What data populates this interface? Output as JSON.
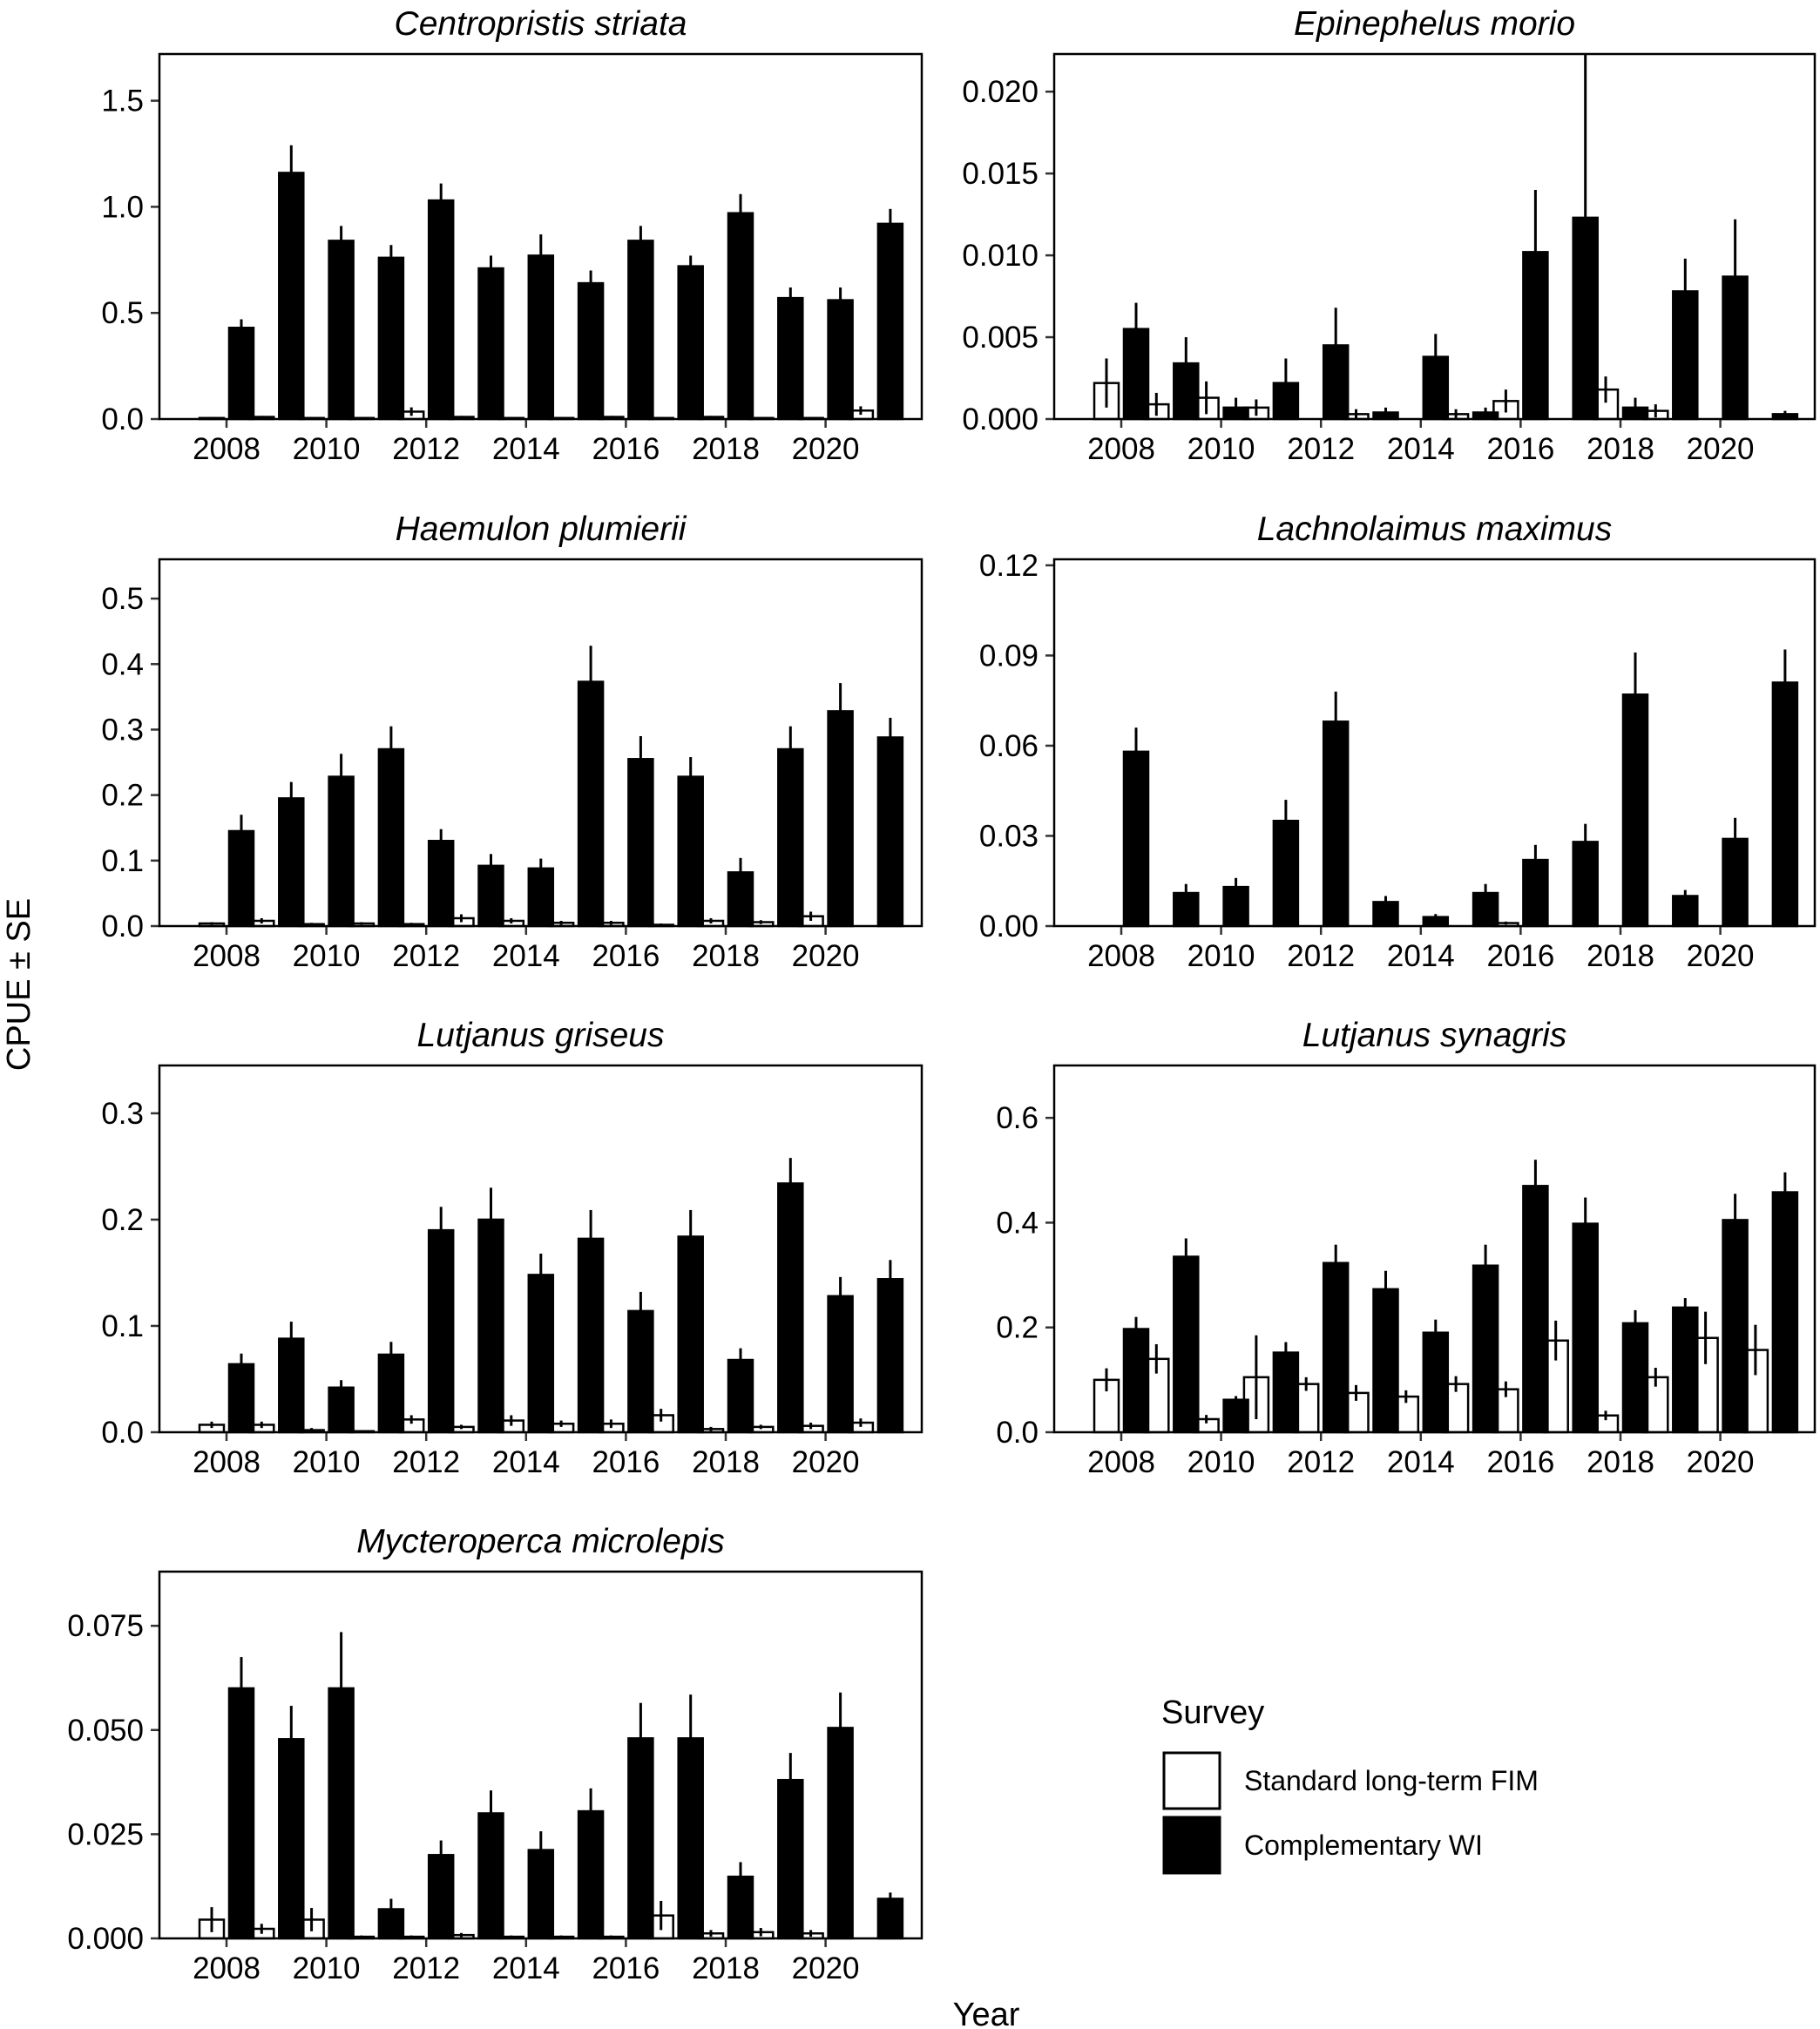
{
  "axis_labels": {
    "y": "CPUE ± SE",
    "x": "Year"
  },
  "legend": {
    "title": "Survey",
    "items": [
      {
        "label": "Standard long-term FIM",
        "fill": "#ffffff"
      },
      {
        "label": "Complementary WI",
        "fill": "#000000"
      }
    ]
  },
  "chart_data": [
    {
      "type": "bar",
      "title": "Centropristis striata",
      "categories": [
        2008,
        2009,
        2010,
        2011,
        2012,
        2013,
        2014,
        2015,
        2016,
        2017,
        2018,
        2019,
        2020,
        2021
      ],
      "xticks": [
        "2008",
        "2010",
        "2012",
        "2014",
        "2016",
        "2018",
        "2020"
      ],
      "ylim": [
        0,
        1.72
      ],
      "yticks": [
        "0.0",
        "0.5",
        "1.0",
        "1.5"
      ],
      "series": [
        {
          "name": "Standard long-term FIM",
          "values": [
            0.005,
            0.01,
            0.005,
            0.005,
            0.035,
            0.01,
            0.005,
            0.005,
            0.01,
            0.005,
            0.01,
            0.005,
            0.005,
            0.04
          ],
          "se": [
            0.005,
            0.005,
            0.005,
            0.005,
            0.02,
            0.005,
            0.005,
            0.005,
            0.005,
            0.005,
            0.005,
            0.005,
            0.005,
            0.02
          ]
        },
        {
          "name": "Complementary WI",
          "values": [
            0.43,
            1.16,
            0.84,
            0.76,
            1.03,
            0.71,
            0.77,
            0.64,
            0.84,
            0.72,
            0.97,
            0.57,
            0.56,
            0.92
          ],
          "se": [
            0.04,
            0.13,
            0.07,
            0.06,
            0.08,
            0.06,
            0.1,
            0.06,
            0.07,
            0.05,
            0.09,
            0.05,
            0.06,
            0.07
          ]
        }
      ]
    },
    {
      "type": "bar",
      "title": "Epinephelus morio",
      "categories": [
        2008,
        2009,
        2010,
        2011,
        2012,
        2013,
        2014,
        2015,
        2016,
        2017,
        2018,
        2019,
        2020,
        2021
      ],
      "xticks": [
        "2008",
        "2010",
        "2012",
        "2014",
        "2016",
        "2018",
        "2020"
      ],
      "ylim": [
        0,
        0.0223
      ],
      "yticks": [
        "0.000",
        "0.005",
        "0.010",
        "0.015",
        "0.020"
      ],
      "series": [
        {
          "name": "Standard long-term FIM",
          "values": [
            0.0022,
            0.0009,
            0.0013,
            0.0007,
            0,
            0.0003,
            0,
            0.0003,
            0.0011,
            0,
            0.0018,
            0.0005,
            0,
            0
          ],
          "se": [
            0.0015,
            0.0007,
            0.001,
            0.0005,
            0,
            0.0003,
            0,
            0.0003,
            0.0007,
            0,
            0.0008,
            0.0004,
            0,
            0
          ]
        },
        {
          "name": "Complementary WI",
          "values": [
            0.0055,
            0.0034,
            0.0007,
            0.0022,
            0.0045,
            0.0004,
            0.0038,
            0.0004,
            0.0102,
            0.0123,
            0.0007,
            0.0078,
            0.0087,
            0.0003
          ],
          "se": [
            0.0016,
            0.0016,
            0.0006,
            0.0015,
            0.0023,
            0.0003,
            0.0014,
            0.0003,
            0.0038,
            0.012,
            0.0006,
            0.002,
            0.0035,
            0.0002
          ]
        }
      ]
    },
    {
      "type": "bar",
      "title": "Haemulon plumierii",
      "categories": [
        2008,
        2009,
        2010,
        2011,
        2012,
        2013,
        2014,
        2015,
        2016,
        2017,
        2018,
        2019,
        2020,
        2021
      ],
      "xticks": [
        "2008",
        "2010",
        "2012",
        "2014",
        "2016",
        "2018",
        "2020"
      ],
      "ylim": [
        0,
        0.56
      ],
      "yticks": [
        "0.0",
        "0.1",
        "0.2",
        "0.3",
        "0.4",
        "0.5"
      ],
      "series": [
        {
          "name": "Standard long-term FIM",
          "values": [
            0.004,
            0.008,
            0.003,
            0.004,
            0.003,
            0.012,
            0.008,
            0.005,
            0.005,
            0.002,
            0.008,
            0.006,
            0.015,
            0
          ],
          "se": [
            0.002,
            0.004,
            0.002,
            0.002,
            0.002,
            0.006,
            0.004,
            0.003,
            0.003,
            0.002,
            0.004,
            0.003,
            0.007,
            0
          ]
        },
        {
          "name": "Complementary WI",
          "values": [
            0.145,
            0.195,
            0.228,
            0.27,
            0.13,
            0.092,
            0.088,
            0.373,
            0.255,
            0.228,
            0.082,
            0.27,
            0.328,
            0.288
          ],
          "se": [
            0.025,
            0.025,
            0.035,
            0.035,
            0.018,
            0.018,
            0.015,
            0.055,
            0.035,
            0.03,
            0.022,
            0.035,
            0.043,
            0.03
          ]
        }
      ]
    },
    {
      "type": "bar",
      "title": "Lachnolaimus maximus",
      "categories": [
        2008,
        2009,
        2010,
        2011,
        2012,
        2013,
        2014,
        2015,
        2016,
        2017,
        2018,
        2019,
        2020,
        2021
      ],
      "xticks": [
        "2008",
        "2010",
        "2012",
        "2014",
        "2016",
        "2018",
        "2020"
      ],
      "ylim": [
        0,
        0.122
      ],
      "yticks": [
        "0.00",
        "0.03",
        "0.06",
        "0.09",
        "0.12"
      ],
      "series": [
        {
          "name": "Standard long-term FIM",
          "values": [
            0,
            0,
            0,
            0,
            0,
            0,
            0,
            0,
            0.001,
            0,
            0,
            0,
            0,
            0
          ],
          "se": [
            0,
            0,
            0,
            0,
            0,
            0,
            0,
            0,
            0.0005,
            0,
            0,
            0,
            0,
            0
          ]
        },
        {
          "name": "Complementary WI",
          "values": [
            0.058,
            0.011,
            0.013,
            0.035,
            0.068,
            0.008,
            0.003,
            0.011,
            0.022,
            0.028,
            0.077,
            0.01,
            0.029,
            0.081
          ],
          "se": [
            0.008,
            0.003,
            0.003,
            0.007,
            0.01,
            0.002,
            0.001,
            0.003,
            0.005,
            0.006,
            0.014,
            0.002,
            0.007,
            0.011
          ]
        }
      ]
    },
    {
      "type": "bar",
      "title": "Lutjanus griseus",
      "categories": [
        2008,
        2009,
        2010,
        2011,
        2012,
        2013,
        2014,
        2015,
        2016,
        2017,
        2018,
        2019,
        2020,
        2021
      ],
      "xticks": [
        "2008",
        "2010",
        "2012",
        "2014",
        "2016",
        "2018",
        "2020"
      ],
      "ylim": [
        0,
        0.345
      ],
      "yticks": [
        "0.0",
        "0.1",
        "0.2",
        "0.3"
      ],
      "series": [
        {
          "name": "Standard long-term FIM",
          "values": [
            0.007,
            0.007,
            0.002,
            0.001,
            0.012,
            0.005,
            0.011,
            0.008,
            0.008,
            0.016,
            0.003,
            0.005,
            0.006,
            0.009
          ],
          "se": [
            0.003,
            0.003,
            0.002,
            0.001,
            0.004,
            0.002,
            0.005,
            0.003,
            0.004,
            0.006,
            0.002,
            0.002,
            0.003,
            0.004
          ]
        },
        {
          "name": "Complementary WI",
          "values": [
            0.064,
            0.088,
            0.042,
            0.073,
            0.19,
            0.2,
            0.148,
            0.182,
            0.114,
            0.184,
            0.068,
            0.234,
            0.128,
            0.144
          ],
          "se": [
            0.01,
            0.016,
            0.007,
            0.012,
            0.022,
            0.03,
            0.02,
            0.027,
            0.018,
            0.025,
            0.011,
            0.024,
            0.018,
            0.018
          ]
        }
      ]
    },
    {
      "type": "bar",
      "title": "Lutjanus synagris",
      "categories": [
        2008,
        2009,
        2010,
        2011,
        2012,
        2013,
        2014,
        2015,
        2016,
        2017,
        2018,
        2019,
        2020,
        2021
      ],
      "xticks": [
        "2008",
        "2010",
        "2012",
        "2014",
        "2016",
        "2018",
        "2020"
      ],
      "ylim": [
        0,
        0.7
      ],
      "yticks": [
        "0.0",
        "0.2",
        "0.4",
        "0.6"
      ],
      "series": [
        {
          "name": "Standard long-term FIM",
          "values": [
            0.1,
            0.14,
            0.025,
            0.105,
            0.092,
            0.075,
            0.068,
            0.092,
            0.082,
            0.175,
            0.032,
            0.105,
            0.18,
            0.157
          ],
          "se": [
            0.022,
            0.028,
            0.008,
            0.08,
            0.013,
            0.015,
            0.012,
            0.015,
            0.015,
            0.038,
            0.009,
            0.018,
            0.05,
            0.048
          ]
        },
        {
          "name": "Complementary WI",
          "values": [
            0.197,
            0.335,
            0.062,
            0.152,
            0.323,
            0.273,
            0.19,
            0.318,
            0.47,
            0.398,
            0.208,
            0.238,
            0.405,
            0.458
          ],
          "se": [
            0.023,
            0.035,
            0.007,
            0.02,
            0.035,
            0.035,
            0.025,
            0.04,
            0.05,
            0.05,
            0.025,
            0.018,
            0.05,
            0.038
          ]
        }
      ]
    },
    {
      "type": "bar",
      "title": "Mycteroperca microlepis",
      "categories": [
        2008,
        2009,
        2010,
        2011,
        2012,
        2013,
        2014,
        2015,
        2016,
        2017,
        2018,
        2019,
        2020,
        2021
      ],
      "xticks": [
        "2008",
        "2010",
        "2012",
        "2014",
        "2016",
        "2018",
        "2020"
      ],
      "ylim": [
        0,
        0.088
      ],
      "yticks": [
        "0.000",
        "0.025",
        "0.050",
        "0.075"
      ],
      "series": [
        {
          "name": "Standard long-term FIM",
          "values": [
            0.0045,
            0.0023,
            0.0045,
            0.0004,
            0.0004,
            0.0008,
            0.0004,
            0.0004,
            0.0004,
            0.0055,
            0.0012,
            0.0015,
            0.0012,
            0
          ],
          "se": [
            0.003,
            0.0012,
            0.0028,
            0.0003,
            0.0003,
            0.0005,
            0.0003,
            0.0003,
            0.0003,
            0.0035,
            0.0008,
            0.001,
            0.0008,
            0
          ]
        },
        {
          "name": "Complementary WI",
          "values": [
            0.06,
            0.0478,
            0.06,
            0.007,
            0.02,
            0.03,
            0.0212,
            0.0305,
            0.048,
            0.048,
            0.0148,
            0.038,
            0.0505,
            0.0095
          ],
          "se": [
            0.0075,
            0.008,
            0.0135,
            0.0025,
            0.0035,
            0.0055,
            0.0045,
            0.0055,
            0.0085,
            0.0105,
            0.0035,
            0.0065,
            0.0085,
            0.0015
          ]
        }
      ]
    }
  ]
}
